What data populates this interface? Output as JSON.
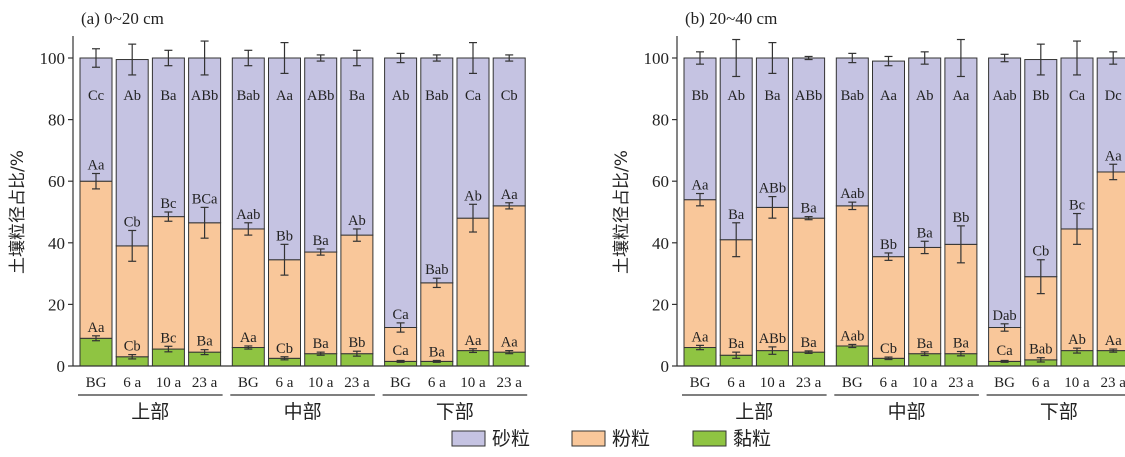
{
  "colors": {
    "sand": "#c5c3e2",
    "silt": "#f9c79a",
    "clay": "#8fc442",
    "error": "#333333",
    "outline": "#333333"
  },
  "legend": [
    {
      "name": "砂粒",
      "color_key": "sand"
    },
    {
      "name": "粉粒",
      "color_key": "silt"
    },
    {
      "name": "黏粒",
      "color_key": "clay"
    }
  ],
  "chart_data": [
    {
      "type": "bar",
      "stacked": true,
      "title": "(a) 0~20 cm",
      "ylabel": "土壤粒径占比/%",
      "ylim": [
        0,
        100
      ],
      "yticks": [
        0,
        20,
        40,
        60,
        80,
        100
      ],
      "groups": [
        "上部",
        "中部",
        "下部"
      ],
      "categories": [
        "BG",
        "6 a",
        "10 a",
        "23 a",
        "BG",
        "6 a",
        "10 a",
        "23 a",
        "BG",
        "6 a",
        "10 a",
        "23 a"
      ],
      "series": [
        {
          "name": "黏粒",
          "values": [
            9,
            3,
            5.5,
            4.5,
            6,
            2.5,
            4,
            4,
            1.5,
            1.5,
            5,
            4.5
          ],
          "errors": [
            0.8,
            0.7,
            0.9,
            0.8,
            0.5,
            0.5,
            0.5,
            0.8,
            0.3,
            0.3,
            0.6,
            0.5
          ],
          "labels": [
            "Aa",
            "Cb",
            "Bc",
            "Ba",
            "Aa",
            "Cb",
            "Ba",
            "Bb",
            "Ca",
            "Ba",
            "Aa",
            "Aa"
          ]
        },
        {
          "name": "粉粒",
          "values": [
            51,
            36,
            43,
            42,
            38.5,
            32,
            33,
            38.5,
            11,
            25.5,
            43,
            47.5
          ],
          "errors": [
            2.5,
            5,
            1.5,
            5,
            2,
            5,
            1,
            2,
            1.5,
            1.5,
            4.5,
            1
          ],
          "labels": [
            "Aa",
            "Cb",
            "Bc",
            "BCa",
            "Aab",
            "Bb",
            "Ba",
            "Ab",
            "Ca",
            "Bab",
            "Ab",
            "Aa"
          ]
        },
        {
          "name": "砂粒",
          "values": [
            40,
            60.5,
            51.5,
            53.5,
            55.5,
            65.5,
            63,
            57.5,
            87.5,
            73,
            52,
            48
          ],
          "errors": [
            3,
            5,
            2.5,
            5.5,
            2.5,
            5,
            1,
            2.5,
            1.5,
            1,
            5,
            1
          ],
          "labels": [
            "Cc",
            "Ab",
            "Ba",
            "ABb",
            "Bab",
            "Aa",
            "ABb",
            "Ba",
            "Ab",
            "Bab",
            "Ca",
            "Cb"
          ]
        }
      ]
    },
    {
      "type": "bar",
      "stacked": true,
      "title": "(b) 20~40 cm",
      "ylabel": "土壤粒径占比/%",
      "ylim": [
        0,
        100
      ],
      "yticks": [
        0,
        20,
        40,
        60,
        80,
        100
      ],
      "groups": [
        "上部",
        "中部",
        "下部"
      ],
      "categories": [
        "BG",
        "6 a",
        "10 a",
        "23 a",
        "BG",
        "6 a",
        "10 a",
        "23 a",
        "BG",
        "6 a",
        "10 a",
        "23 a"
      ],
      "series": [
        {
          "name": "黏粒",
          "values": [
            6,
            3.5,
            5,
            4.5,
            6.5,
            2.5,
            4,
            4,
            1.5,
            2,
            5,
            5
          ],
          "errors": [
            0.7,
            1,
            1.2,
            0.4,
            0.5,
            0.4,
            0.6,
            0.7,
            0.3,
            0.7,
            0.8,
            0.5
          ],
          "labels": [
            "Aa",
            "Ba",
            "ABb",
            "Ba",
            "Aab",
            "Cb",
            "Ba",
            "Ba",
            "Ca",
            "Bab",
            "Ab",
            "Aa"
          ]
        },
        {
          "name": "粉粒",
          "values": [
            48,
            37.5,
            46.5,
            43.5,
            45.5,
            33,
            34.5,
            35.5,
            11,
            27,
            39.5,
            58
          ],
          "errors": [
            2,
            5.5,
            3.5,
            0.5,
            1.2,
            1.2,
            2,
            6,
            1.2,
            5.5,
            5,
            2.5
          ],
          "labels": [
            "Aa",
            "Ba",
            "ABb",
            "Ba",
            "Aab",
            "Bb",
            "Ba",
            "Bb",
            "Dab",
            "Cb",
            "Bc",
            "Aa"
          ]
        },
        {
          "name": "砂粒",
          "values": [
            46,
            59,
            48.5,
            52,
            48,
            63.5,
            61.5,
            60.5,
            87.5,
            70.5,
            55.5,
            37
          ],
          "errors": [
            2,
            6,
            5,
            0.5,
            1.5,
            1.5,
            2,
            6,
            1.2,
            5,
            5.5,
            2
          ],
          "labels": [
            "Bb",
            "Ab",
            "Ba",
            "ABb",
            "Bab",
            "Aa",
            "Ab",
            "Aa",
            "Aab",
            "Bb",
            "Ca",
            "Dc"
          ]
        }
      ]
    }
  ]
}
